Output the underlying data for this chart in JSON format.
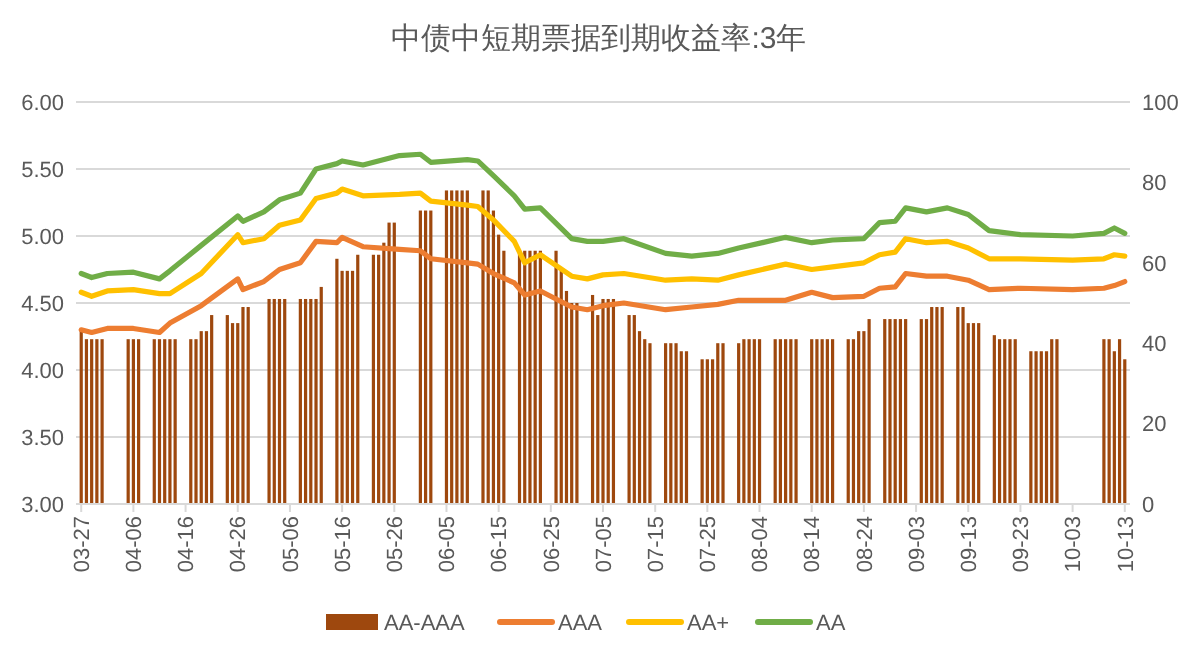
{
  "chart_data": {
    "type": "line",
    "title": "中债中短期票据到期收益率:3年",
    "xlim": [
      "--03-26",
      "--10-14"
    ],
    "xticks": [
      {
        "value": "--03-27",
        "label": "03-27"
      },
      {
        "value": "--04-06",
        "label": "04-06"
      },
      {
        "value": "--04-16",
        "label": "04-16"
      },
      {
        "value": "--04-26",
        "label": "04-26"
      },
      {
        "value": "--05-06",
        "label": "05-06"
      },
      {
        "value": "--05-16",
        "label": "05-16"
      },
      {
        "value": "--05-26",
        "label": "05-26"
      },
      {
        "value": "--06-05",
        "label": "06-05"
      },
      {
        "value": "--06-15",
        "label": "06-15"
      },
      {
        "value": "--06-25",
        "label": "06-25"
      },
      {
        "value": "--07-05",
        "label": "07-05"
      },
      {
        "value": "--07-15",
        "label": "07-15"
      },
      {
        "value": "--07-25",
        "label": "07-25"
      },
      {
        "value": "--08-04",
        "label": "08-04"
      },
      {
        "value": "--08-14",
        "label": "08-14"
      },
      {
        "value": "--08-24",
        "label": "08-24"
      },
      {
        "value": "--09-03",
        "label": "09-03"
      },
      {
        "value": "--09-13",
        "label": "09-13"
      },
      {
        "value": "--09-23",
        "label": "09-23"
      },
      {
        "value": "--10-03",
        "label": "10-03"
      },
      {
        "value": "--10-13",
        "label": "10-13"
      }
    ],
    "ylim": [
      3,
      6
    ],
    "yticks": [
      {
        "value": 3,
        "label": "3.00"
      },
      {
        "value": 3.5,
        "label": "3.50"
      },
      {
        "value": 4,
        "label": "4.00"
      },
      {
        "value": 4.5,
        "label": "4.50"
      },
      {
        "value": 5,
        "label": "5.00"
      },
      {
        "value": 5.5,
        "label": "5.50"
      },
      {
        "value": 6,
        "label": "6.00"
      }
    ],
    "y2lim": [
      0,
      100
    ],
    "y2ticks": [
      0,
      20,
      40,
      60,
      80,
      100
    ],
    "grid": "y",
    "legend": "bottom",
    "series": [
      {
        "name": "AA-AAA",
        "type": "bar",
        "axis": "y2",
        "color": "#9e480e",
        "x": [
          "--03-27",
          "--03-28",
          "--03-29",
          "--03-30",
          "--03-31",
          "--04-05",
          "--04-06",
          "--04-07",
          "--04-10",
          "--04-11",
          "--04-12",
          "--04-13",
          "--04-14",
          "--04-17",
          "--04-18",
          "--04-19",
          "--04-20",
          "--04-21",
          "--04-24",
          "--04-25",
          "--04-26",
          "--04-27",
          "--04-28",
          "--05-02",
          "--05-03",
          "--05-04",
          "--05-05",
          "--05-08",
          "--05-09",
          "--05-10",
          "--05-11",
          "--05-12",
          "--05-15",
          "--05-16",
          "--05-17",
          "--05-18",
          "--05-19",
          "--05-22",
          "--05-23",
          "--05-24",
          "--05-25",
          "--05-26",
          "--05-31",
          "--06-01",
          "--06-02",
          "--06-05",
          "--06-06",
          "--06-07",
          "--06-08",
          "--06-09",
          "--06-12",
          "--06-13",
          "--06-14",
          "--06-15",
          "--06-16",
          "--06-19",
          "--06-20",
          "--06-21",
          "--06-22",
          "--06-23",
          "--06-26",
          "--06-27",
          "--06-28",
          "--06-29",
          "--06-30",
          "--07-03",
          "--07-04",
          "--07-05",
          "--07-06",
          "--07-07",
          "--07-10",
          "--07-11",
          "--07-12",
          "--07-13",
          "--07-14",
          "--07-17",
          "--07-18",
          "--07-19",
          "--07-20",
          "--07-21",
          "--07-24",
          "--07-25",
          "--07-26",
          "--07-27",
          "--07-28",
          "--07-31",
          "--08-01",
          "--08-02",
          "--08-03",
          "--08-04",
          "--08-07",
          "--08-08",
          "--08-09",
          "--08-10",
          "--08-11",
          "--08-14",
          "--08-15",
          "--08-16",
          "--08-17",
          "--08-18",
          "--08-21",
          "--08-22",
          "--08-23",
          "--08-24",
          "--08-25",
          "--08-28",
          "--08-29",
          "--08-30",
          "--08-31",
          "--09-01",
          "--09-04",
          "--09-05",
          "--09-06",
          "--09-07",
          "--09-08",
          "--09-11",
          "--09-12",
          "--09-13",
          "--09-14",
          "--09-15",
          "--09-18",
          "--09-19",
          "--09-20",
          "--09-21",
          "--09-22",
          "--09-25",
          "--09-26",
          "--09-27",
          "--09-28",
          "--09-29",
          "--09-30",
          "--10-09",
          "--10-10",
          "--10-11",
          "--10-12",
          "--10-13"
        ],
        "values": [
          43,
          41,
          41,
          41,
          41,
          41,
          41,
          41,
          41,
          41,
          41,
          41,
          41,
          41,
          41,
          43,
          43,
          47,
          47,
          45,
          45,
          49,
          49,
          51,
          51,
          51,
          51,
          51,
          51,
          51,
          51,
          54,
          61,
          58,
          58,
          58,
          62,
          62,
          62,
          65,
          70,
          70,
          73,
          73,
          73,
          78,
          78,
          78,
          78,
          78,
          78,
          78,
          73,
          67,
          63,
          63,
          63,
          63,
          63,
          63,
          63,
          58,
          53,
          50,
          50,
          52,
          47,
          51,
          51,
          51,
          47,
          47,
          43,
          41,
          40,
          40,
          40,
          40,
          38,
          38,
          36,
          36,
          36,
          40,
          40,
          40,
          41,
          41,
          41,
          41,
          41,
          41,
          41,
          41,
          41,
          41,
          41,
          41,
          41,
          41,
          41,
          41,
          43,
          43,
          46,
          46,
          46,
          46,
          46,
          46,
          46,
          46,
          49,
          49,
          49,
          49,
          49,
          45,
          45,
          45,
          42,
          41,
          41,
          41,
          41,
          38,
          38,
          38,
          38,
          41,
          41,
          41,
          41,
          38,
          41,
          36
        ]
      },
      {
        "name": "AAA",
        "color": "#ed7d31",
        "x": [
          "--03-27",
          "--03-29",
          "--04-01",
          "--04-06",
          "--04-11",
          "--04-13",
          "--04-19",
          "--04-26",
          "--04-27",
          "--05-01",
          "--05-04",
          "--05-08",
          "--05-11",
          "--05-15",
          "--05-16",
          "--05-20",
          "--05-27",
          "--05-31",
          "--06-02",
          "--06-09",
          "--06-11",
          "--06-14",
          "--06-18",
          "--06-20",
          "--06-23",
          "--06-29",
          "--07-02",
          "--07-05",
          "--07-09",
          "--07-17",
          "--07-22",
          "--07-27",
          "--07-31",
          "--08-09",
          "--08-14",
          "--08-18",
          "--08-24",
          "--08-27",
          "--08-30",
          "--09-01",
          "--09-05",
          "--09-09",
          "--09-13",
          "--09-17",
          "--09-23",
          "--10-03",
          "--10-09",
          "--10-11",
          "--10-13"
        ],
        "values": [
          4.3,
          4.28,
          4.31,
          4.31,
          4.28,
          4.35,
          4.48,
          4.68,
          4.6,
          4.66,
          4.75,
          4.8,
          4.96,
          4.95,
          4.99,
          4.92,
          4.9,
          4.89,
          4.83,
          4.8,
          4.79,
          4.72,
          4.65,
          4.56,
          4.59,
          4.47,
          4.45,
          4.48,
          4.5,
          4.45,
          4.47,
          4.49,
          4.52,
          4.52,
          4.58,
          4.54,
          4.55,
          4.61,
          4.62,
          4.72,
          4.7,
          4.7,
          4.67,
          4.6,
          4.61,
          4.6,
          4.61,
          4.63,
          4.66
        ]
      },
      {
        "name": "AA+",
        "color": "#ffc000",
        "x": [
          "--03-27",
          "--03-29",
          "--04-01",
          "--04-06",
          "--04-11",
          "--04-13",
          "--04-19",
          "--04-26",
          "--04-27",
          "--05-01",
          "--05-04",
          "--05-08",
          "--05-11",
          "--05-15",
          "--05-16",
          "--05-20",
          "--05-27",
          "--05-31",
          "--06-02",
          "--06-09",
          "--06-11",
          "--06-14",
          "--06-18",
          "--06-20",
          "--06-23",
          "--06-29",
          "--07-02",
          "--07-05",
          "--07-09",
          "--07-17",
          "--07-22",
          "--07-27",
          "--07-31",
          "--08-09",
          "--08-14",
          "--08-18",
          "--08-24",
          "--08-27",
          "--08-30",
          "--09-01",
          "--09-05",
          "--09-09",
          "--09-13",
          "--09-17",
          "--09-23",
          "--10-03",
          "--10-09",
          "--10-11",
          "--10-13"
        ],
        "values": [
          4.58,
          4.55,
          4.59,
          4.6,
          4.57,
          4.57,
          4.72,
          5.01,
          4.95,
          4.98,
          5.08,
          5.12,
          5.28,
          5.32,
          5.35,
          5.3,
          5.31,
          5.32,
          5.26,
          5.23,
          5.22,
          5.12,
          4.96,
          4.8,
          4.86,
          4.7,
          4.68,
          4.71,
          4.72,
          4.67,
          4.68,
          4.67,
          4.71,
          4.79,
          4.75,
          4.77,
          4.8,
          4.86,
          4.88,
          4.98,
          4.95,
          4.96,
          4.91,
          4.83,
          4.83,
          4.82,
          4.83,
          4.86,
          4.85
        ]
      },
      {
        "name": "AA",
        "color": "#70ad47",
        "x": [
          "--03-27",
          "--03-29",
          "--04-01",
          "--04-06",
          "--04-11",
          "--04-13",
          "--04-19",
          "--04-26",
          "--04-27",
          "--05-01",
          "--05-04",
          "--05-08",
          "--05-11",
          "--05-15",
          "--05-16",
          "--05-20",
          "--05-27",
          "--05-31",
          "--06-02",
          "--06-09",
          "--06-11",
          "--06-14",
          "--06-18",
          "--06-20",
          "--06-23",
          "--06-29",
          "--07-02",
          "--07-05",
          "--07-09",
          "--07-17",
          "--07-22",
          "--07-27",
          "--07-31",
          "--08-09",
          "--08-14",
          "--08-18",
          "--08-24",
          "--08-27",
          "--08-30",
          "--09-01",
          "--09-05",
          "--09-09",
          "--09-13",
          "--09-17",
          "--09-23",
          "--10-03",
          "--10-09",
          "--10-11",
          "--10-13"
        ],
        "values": [
          4.72,
          4.69,
          4.72,
          4.73,
          4.68,
          4.74,
          4.93,
          5.15,
          5.11,
          5.18,
          5.27,
          5.32,
          5.5,
          5.54,
          5.56,
          5.53,
          5.6,
          5.61,
          5.55,
          5.57,
          5.56,
          5.45,
          5.3,
          5.2,
          5.21,
          4.98,
          4.96,
          4.96,
          4.98,
          4.87,
          4.85,
          4.87,
          4.91,
          4.99,
          4.95,
          4.97,
          4.98,
          5.1,
          5.11,
          5.21,
          5.18,
          5.21,
          5.16,
          5.04,
          5.01,
          5.0,
          5.02,
          5.06,
          5.02
        ]
      }
    ]
  }
}
